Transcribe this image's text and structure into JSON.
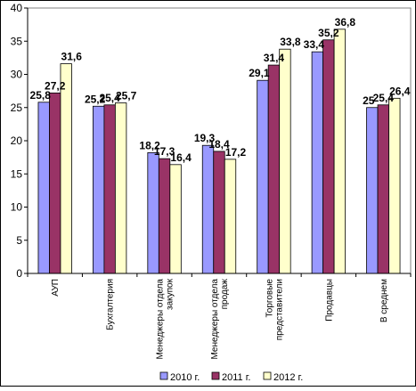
{
  "chart_data": {
    "type": "bar",
    "title": "",
    "xlabel": "",
    "ylabel": "",
    "ylim": [
      0,
      40
    ],
    "yticks": [
      "0",
      "5",
      "10",
      "15",
      "20",
      "25",
      "30",
      "35",
      "40"
    ],
    "grid": false,
    "legend_position": "bottom",
    "categories": [
      "АУП",
      "Бухгалтерия",
      "Менеджеры отдела закупок",
      "Менеджеры отдела продаж",
      "Торговые представители",
      "Продавцы",
      "В среднем"
    ],
    "category_lines": [
      [
        "АУП"
      ],
      [
        "Бухгалтерия"
      ],
      [
        "Менеджеры отдела",
        "закупок"
      ],
      [
        "Менеджеры отдела",
        "продаж"
      ],
      [
        "Торговые",
        "представители"
      ],
      [
        "Продавцы"
      ],
      [
        "В среднем"
      ]
    ],
    "series": [
      {
        "name": "2010 г.",
        "color": "#9999FF",
        "values": [
          25.8,
          25.2,
          18.2,
          19.3,
          29.1,
          33.4,
          25
        ],
        "labels": [
          "25,8",
          "25,2",
          "18,2",
          "19,3",
          "29,1",
          "33,4",
          "25"
        ]
      },
      {
        "name": "2011 г.",
        "color": "#993366",
        "values": [
          27.2,
          25.4,
          17.3,
          18.4,
          31.4,
          35.2,
          25.4
        ],
        "labels": [
          "27,2",
          "25,4",
          "17,3",
          "18,4",
          "31,4",
          "35,2",
          "25,4"
        ]
      },
      {
        "name": "2012 г.",
        "color": "#FFFFCC",
        "values": [
          31.6,
          25.7,
          16.4,
          17.2,
          33.8,
          36.8,
          26.4
        ],
        "labels": [
          "31,6",
          "25,7",
          "16,4",
          "17,2",
          "33,8",
          "36,8",
          "26,4"
        ]
      }
    ]
  }
}
